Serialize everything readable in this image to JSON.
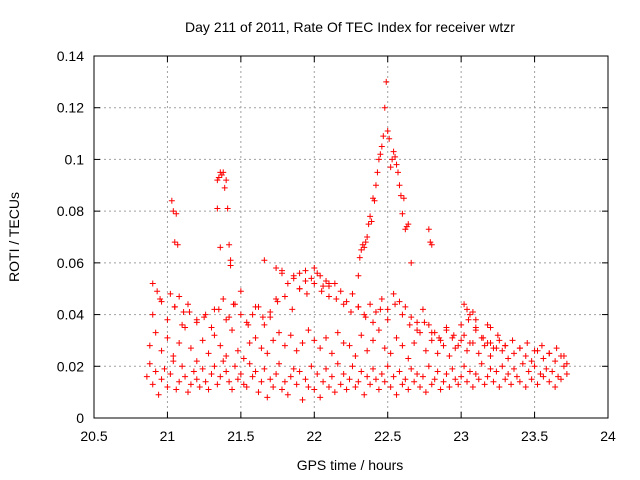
{
  "chart_data": {
    "type": "scatter",
    "title": "Day 211 of 2011, Rate Of TEC Index for receiver wtzr",
    "xlabel": "GPS time / hours",
    "ylabel": "ROTI / TECUs",
    "xlim": [
      20.5,
      24
    ],
    "ylim": [
      0,
      0.14
    ],
    "xticks": [
      20.5,
      21,
      21.5,
      22,
      22.5,
      23,
      23.5,
      24
    ],
    "xtick_labels": [
      "20.5",
      "21",
      "21.5",
      "22",
      "22.5",
      "23",
      "23.5",
      "24"
    ],
    "yticks": [
      0,
      0.02,
      0.04,
      0.06,
      0.08,
      0.1,
      0.12,
      0.14
    ],
    "ytick_labels": [
      "0",
      "0.02",
      "0.04",
      "0.06",
      "0.08",
      "0.1",
      "0.12",
      "0.14"
    ],
    "grid": true,
    "marker": "+",
    "marker_color": "#ff0000",
    "series": [
      {
        "name": "ROTI",
        "x": [
          20.86,
          20.88,
          20.9,
          20.92,
          20.94,
          20.96,
          20.98,
          21.0,
          21.02,
          21.04,
          21.06,
          21.08,
          21.1,
          21.12,
          21.14,
          21.16,
          21.18,
          21.2,
          21.22,
          21.24,
          21.26,
          21.28,
          21.3,
          21.32,
          21.34,
          21.36,
          21.38,
          21.4,
          21.42,
          21.44,
          21.46,
          21.48,
          21.5,
          21.52,
          21.54,
          21.56,
          21.58,
          21.6,
          21.62,
          21.64,
          21.66,
          21.68,
          21.7,
          21.72,
          21.74,
          21.76,
          21.78,
          21.8,
          21.82,
          21.84,
          21.86,
          21.88,
          21.9,
          21.92,
          21.94,
          21.96,
          21.98,
          22.0,
          22.02,
          22.04,
          22.06,
          22.08,
          22.1,
          22.12,
          22.14,
          22.16,
          22.18,
          22.2,
          22.22,
          22.24,
          22.26,
          22.28,
          22.3,
          22.32,
          22.34,
          22.36,
          22.38,
          22.4,
          22.42,
          22.44,
          22.46,
          22.48,
          22.5,
          22.52,
          22.54,
          22.56,
          22.58,
          22.6,
          22.62,
          22.64,
          22.66,
          22.68,
          22.7,
          22.72,
          22.74,
          22.76,
          22.78,
          22.8,
          22.82,
          22.84,
          22.86,
          22.88,
          22.9,
          22.92,
          22.94,
          22.96,
          22.98,
          23.0,
          23.02,
          23.04,
          23.06,
          23.08,
          23.1,
          23.12,
          23.14,
          23.16,
          23.18,
          23.2,
          23.22,
          23.24,
          23.26,
          23.28,
          23.3,
          23.32,
          23.34,
          23.36,
          23.38,
          23.4,
          23.42,
          23.44,
          23.46,
          23.48,
          23.5,
          23.52,
          23.54,
          23.56,
          23.58,
          23.6,
          23.62,
          23.64,
          23.66,
          23.68,
          23.7,
          23.72,
          20.88,
          20.92,
          20.96,
          21.0,
          21.04,
          21.08,
          21.12,
          21.16,
          21.2,
          21.24,
          21.28,
          21.32,
          21.36,
          21.4,
          21.44,
          21.48,
          21.52,
          21.56,
          21.6,
          21.64,
          21.68,
          21.72,
          21.76,
          21.8,
          21.84,
          21.88,
          21.92,
          21.96,
          22.0,
          22.04,
          22.08,
          22.12,
          22.16,
          22.2,
          22.24,
          22.28,
          22.32,
          22.36,
          22.4,
          22.44,
          22.48,
          22.52,
          22.56,
          22.6,
          22.64,
          22.68,
          22.72,
          22.76,
          22.8,
          22.84,
          22.88,
          22.92,
          22.96,
          23.0,
          23.04,
          23.08,
          23.12,
          23.16,
          23.2,
          23.24,
          23.28,
          23.32,
          23.36,
          23.4,
          23.44,
          23.48,
          23.52,
          23.56,
          23.6,
          23.64,
          23.68,
          23.72,
          20.9,
          20.95,
          21.0,
          21.05,
          21.1,
          21.15,
          21.2,
          21.25,
          21.3,
          21.35,
          21.4,
          21.45,
          21.5,
          21.55,
          21.6,
          21.65,
          21.7,
          21.75,
          21.8,
          21.85,
          21.9,
          21.95,
          22.0,
          22.05,
          22.1,
          22.15,
          22.2,
          22.25,
          22.3,
          22.35,
          22.4,
          22.45,
          22.5,
          22.55,
          22.6,
          22.65,
          22.7,
          22.75,
          22.8,
          22.85,
          22.9,
          22.95,
          23.0,
          23.05,
          23.1,
          23.15,
          23.2,
          23.25,
          23.3,
          23.35,
          23.4,
          23.45,
          23.5,
          23.55,
          23.6,
          23.65,
          23.7,
          20.9,
          20.93,
          20.96,
          21.02,
          21.05,
          21.08,
          21.11,
          21.14,
          21.2,
          21.26,
          21.32,
          21.38,
          21.42,
          21.46,
          21.5,
          21.54,
          21.58,
          21.62,
          21.66,
          21.7,
          21.74,
          21.78,
          21.82,
          21.86,
          21.9,
          21.94,
          21.98,
          22.02,
          22.06,
          22.1,
          22.14,
          22.18,
          22.22,
          22.26,
          22.3,
          22.34,
          22.38,
          22.42,
          22.46,
          22.5,
          22.54,
          22.58,
          22.62,
          22.66,
          22.7,
          22.74,
          22.78,
          22.82,
          22.86,
          22.9,
          22.94,
          22.98,
          23.02,
          23.06,
          23.1,
          23.14,
          23.18,
          23.22,
          23.26,
          23.3,
          21.03,
          21.04,
          21.05,
          21.06,
          21.07,
          21.34,
          21.35,
          21.36,
          21.37,
          21.38,
          21.39,
          21.4,
          21.41,
          21.42,
          21.34,
          21.36,
          21.43,
          21.43,
          21.66,
          21.74,
          21.78,
          21.86,
          21.9,
          21.94,
          22.0,
          22.04,
          22.08,
          22.1,
          22.3,
          22.31,
          22.32,
          22.33,
          22.34,
          22.35,
          22.36,
          22.37,
          22.38,
          22.39,
          22.4,
          22.41,
          22.42,
          22.43,
          22.44,
          22.45,
          22.46,
          22.47,
          22.48,
          22.49,
          22.5,
          22.51,
          22.52,
          22.53,
          22.54,
          22.55,
          22.56,
          22.57,
          22.58,
          22.59,
          22.6,
          22.61,
          22.62,
          22.63,
          22.64,
          22.66,
          22.78,
          22.79,
          22.8,
          23.02,
          23.04,
          23.06,
          23.08,
          23.1,
          23.18,
          23.2
        ],
        "y": [
          0.016,
          0.021,
          0.013,
          0.018,
          0.009,
          0.015,
          0.019,
          0.012,
          0.017,
          0.022,
          0.011,
          0.014,
          0.02,
          0.016,
          0.01,
          0.013,
          0.018,
          0.015,
          0.012,
          0.019,
          0.014,
          0.011,
          0.017,
          0.02,
          0.013,
          0.016,
          0.022,
          0.018,
          0.014,
          0.011,
          0.02,
          0.015,
          0.017,
          0.013,
          0.012,
          0.021,
          0.016,
          0.018,
          0.01,
          0.014,
          0.019,
          0.008,
          0.015,
          0.012,
          0.017,
          0.021,
          0.011,
          0.014,
          0.009,
          0.016,
          0.019,
          0.013,
          0.018,
          0.007,
          0.015,
          0.012,
          0.02,
          0.011,
          0.017,
          0.008,
          0.014,
          0.019,
          0.012,
          0.016,
          0.01,
          0.021,
          0.013,
          0.017,
          0.011,
          0.015,
          0.02,
          0.012,
          0.014,
          0.018,
          0.009,
          0.016,
          0.013,
          0.019,
          0.015,
          0.011,
          0.017,
          0.014,
          0.02,
          0.012,
          0.016,
          0.009,
          0.018,
          0.013,
          0.015,
          0.011,
          0.019,
          0.014,
          0.017,
          0.012,
          0.016,
          0.01,
          0.02,
          0.013,
          0.015,
          0.018,
          0.011,
          0.014,
          0.017,
          0.012,
          0.019,
          0.015,
          0.013,
          0.016,
          0.02,
          0.014,
          0.018,
          0.012,
          0.017,
          0.015,
          0.021,
          0.013,
          0.016,
          0.019,
          0.014,
          0.018,
          0.012,
          0.02,
          0.015,
          0.017,
          0.013,
          0.019,
          0.016,
          0.014,
          0.021,
          0.012,
          0.018,
          0.015,
          0.02,
          0.013,
          0.017,
          0.016,
          0.019,
          0.014,
          0.018,
          0.012,
          0.016,
          0.015,
          0.02,
          0.017,
          0.028,
          0.033,
          0.026,
          0.031,
          0.024,
          0.029,
          0.035,
          0.027,
          0.022,
          0.03,
          0.025,
          0.032,
          0.028,
          0.024,
          0.034,
          0.026,
          0.023,
          0.029,
          0.031,
          0.027,
          0.025,
          0.03,
          0.033,
          0.028,
          0.032,
          0.026,
          0.029,
          0.034,
          0.03,
          0.027,
          0.031,
          0.025,
          0.033,
          0.029,
          0.028,
          0.024,
          0.032,
          0.026,
          0.03,
          0.034,
          0.027,
          0.025,
          0.031,
          0.028,
          0.023,
          0.029,
          0.033,
          0.026,
          0.03,
          0.025,
          0.028,
          0.024,
          0.027,
          0.03,
          0.026,
          0.029,
          0.025,
          0.028,
          0.024,
          0.027,
          0.026,
          0.023,
          0.025,
          0.027,
          0.024,
          0.022,
          0.026,
          0.023,
          0.025,
          0.022,
          0.024,
          0.021,
          0.04,
          0.046,
          0.038,
          0.043,
          0.036,
          0.041,
          0.037,
          0.039,
          0.035,
          0.042,
          0.038,
          0.044,
          0.04,
          0.036,
          0.043,
          0.039,
          0.041,
          0.045,
          0.047,
          0.042,
          0.05,
          0.048,
          0.052,
          0.049,
          0.051,
          0.046,
          0.044,
          0.041,
          0.043,
          0.039,
          0.037,
          0.042,
          0.038,
          0.044,
          0.04,
          0.036,
          0.034,
          0.037,
          0.033,
          0.031,
          0.035,
          0.032,
          0.036,
          0.038,
          0.034,
          0.031,
          0.029,
          0.032,
          0.028,
          0.03,
          0.027,
          0.029,
          0.026,
          0.028,
          0.025,
          0.027,
          0.024,
          0.052,
          0.049,
          0.045,
          0.048,
          0.043,
          0.047,
          0.041,
          0.044,
          0.038,
          0.04,
          0.042,
          0.046,
          0.039,
          0.044,
          0.049,
          0.037,
          0.04,
          0.043,
          0.036,
          0.039,
          0.046,
          0.056,
          0.052,
          0.055,
          0.05,
          0.053,
          0.054,
          0.056,
          0.051,
          0.047,
          0.052,
          0.049,
          0.045,
          0.048,
          0.043,
          0.04,
          0.044,
          0.041,
          0.046,
          0.042,
          0.048,
          0.045,
          0.043,
          0.039,
          0.037,
          0.042,
          0.036,
          0.033,
          0.03,
          0.034,
          0.031,
          0.028,
          0.032,
          0.029,
          0.035,
          0.031,
          0.029,
          0.027,
          0.03,
          0.028,
          0.084,
          0.08,
          0.068,
          0.079,
          0.067,
          0.092,
          0.093,
          0.095,
          0.094,
          0.095,
          0.089,
          0.092,
          0.081,
          0.067,
          0.081,
          0.066,
          0.061,
          0.059,
          0.061,
          0.058,
          0.057,
          0.054,
          0.056,
          0.057,
          0.058,
          0.055,
          0.053,
          0.052,
          0.055,
          0.062,
          0.065,
          0.067,
          0.066,
          0.068,
          0.07,
          0.075,
          0.078,
          0.076,
          0.085,
          0.084,
          0.09,
          0.095,
          0.1,
          0.102,
          0.105,
          0.109,
          0.12,
          0.13,
          0.111,
          0.108,
          0.097,
          0.1,
          0.103,
          0.101,
          0.098,
          0.095,
          0.09,
          0.086,
          0.079,
          0.085,
          0.073,
          0.074,
          0.075,
          0.06,
          0.073,
          0.068,
          0.067,
          0.044,
          0.042,
          0.04,
          0.041,
          0.038,
          0.036,
          0.035
        ]
      }
    ]
  }
}
